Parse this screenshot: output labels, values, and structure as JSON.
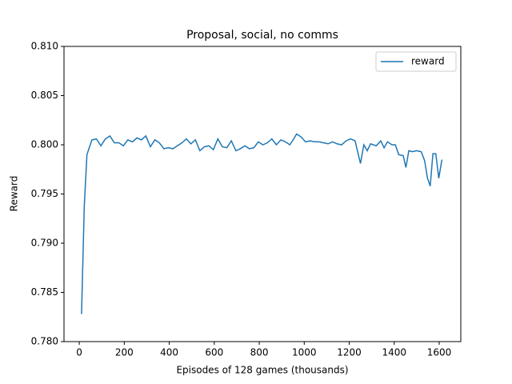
{
  "chart_data": {
    "type": "line",
    "title": "Proposal, social, no comms",
    "x_label": "Episodes of 128 games (thousands)",
    "y_label": "Reward",
    "x": [
      10,
      22,
      34,
      56,
      76,
      96,
      116,
      136,
      156,
      176,
      196,
      216,
      236,
      256,
      276,
      296,
      316,
      336,
      356,
      376,
      396,
      416,
      436,
      456,
      476,
      496,
      516,
      536,
      556,
      576,
      596,
      616,
      636,
      656,
      676,
      696,
      716,
      736,
      756,
      776,
      796,
      816,
      836,
      856,
      876,
      896,
      916,
      936,
      956,
      966,
      986,
      1006,
      1026,
      1046,
      1066,
      1086,
      1106,
      1126,
      1146,
      1166,
      1186,
      1206,
      1226,
      1250,
      1265,
      1280,
      1295,
      1320,
      1340,
      1355,
      1370,
      1390,
      1405,
      1420,
      1440,
      1452,
      1465,
      1480,
      1500,
      1520,
      1535,
      1548,
      1560,
      1572,
      1585,
      1598,
      1612
    ],
    "series": [
      {
        "name": "reward",
        "color": "#1f77b4",
        "values": [
          0.7828,
          0.7937,
          0.799,
          0.8005,
          0.8006,
          0.7999,
          0.8006,
          0.8009,
          0.8002,
          0.8002,
          0.7999,
          0.8005,
          0.8003,
          0.8007,
          0.8005,
          0.8009,
          0.7998,
          0.8005,
          0.8002,
          0.7996,
          0.7997,
          0.7996,
          0.7999,
          0.8002,
          0.8006,
          0.8001,
          0.8005,
          0.7994,
          0.7998,
          0.7999,
          0.7995,
          0.8006,
          0.7998,
          0.7997,
          0.8004,
          0.7994,
          0.7996,
          0.7999,
          0.7996,
          0.7997,
          0.8003,
          0.8,
          0.8002,
          0.8006,
          0.8,
          0.8005,
          0.8003,
          0.8,
          0.8007,
          0.8011,
          0.8008,
          0.8003,
          0.8004,
          0.8003,
          0.8003,
          0.8002,
          0.8001,
          0.8003,
          0.8001,
          0.8,
          0.8004,
          0.8006,
          0.8004,
          0.7981,
          0.8,
          0.7994,
          0.8001,
          0.7999,
          0.8004,
          0.7997,
          0.8003,
          0.8,
          0.8,
          0.799,
          0.7989,
          0.7977,
          0.7994,
          0.7993,
          0.7994,
          0.7993,
          0.7984,
          0.7966,
          0.7958,
          0.7991,
          0.7991,
          0.7966,
          0.7985
        ]
      }
    ],
    "xlim": [
      -68,
      1696
    ],
    "xticks": [
      0,
      200,
      400,
      600,
      800,
      1000,
      1200,
      1400,
      1600
    ],
    "ylim": [
      0.78,
      0.81
    ],
    "yticks": [
      {
        "value": 0.78,
        "label": "0.780"
      },
      0.785,
      {
        "value": 0.79,
        "label": "0.790"
      },
      0.795,
      {
        "value": 0.8,
        "label": "0.800"
      },
      0.805,
      {
        "value": 0.81,
        "label": "0.810"
      }
    ],
    "legend": "upper right",
    "grid": false
  }
}
